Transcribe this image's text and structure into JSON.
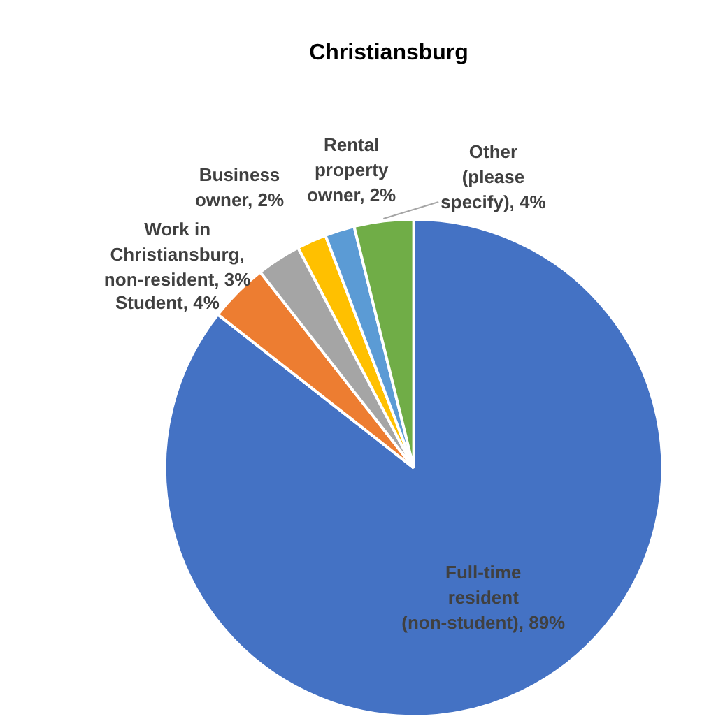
{
  "chart_data": {
    "type": "pie",
    "title": "Christiansburg",
    "categories": [
      "Full-time resident (non-student)",
      "Student",
      "Work in Christiansburg, non-resident",
      "Business owner",
      "Rental property owner",
      "Other (please specify)"
    ],
    "values": [
      89,
      4,
      3,
      2,
      2,
      4
    ],
    "value_labels": [
      "89%",
      "4%",
      "3%",
      "2%",
      "2%",
      "4%"
    ],
    "colors": [
      "#4472c4",
      "#ed7d31",
      "#a5a5a5",
      "#ffc000",
      "#5b9bd5",
      "#70ad47"
    ]
  }
}
